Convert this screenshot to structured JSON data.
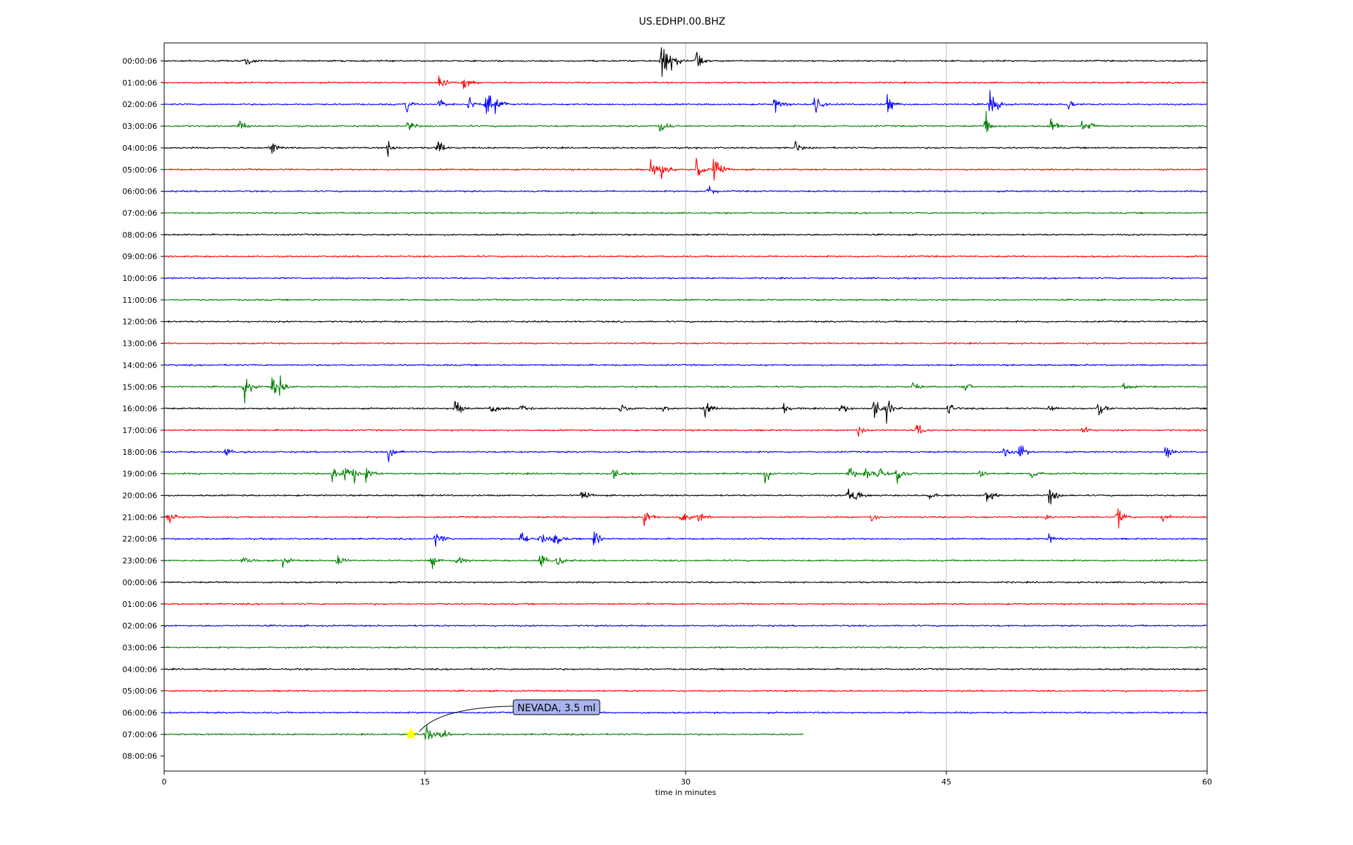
{
  "chart_data": {
    "type": "line",
    "title": "US.EDHPI.00.BHZ",
    "xlabel": "time in minutes",
    "xlim": [
      0,
      60
    ],
    "x_ticks": [
      0,
      15,
      30,
      45,
      60
    ],
    "x_tick_labels": [
      "0",
      "15",
      "30",
      "45",
      "60"
    ],
    "grid": "vertical lines at x ticks",
    "row_colors": [
      "#000000",
      "#ff0000",
      "#0000ff",
      "#008000"
    ],
    "rows": [
      {
        "label": "00:00:06",
        "end": 60,
        "events": [
          [
            4.6,
            0.7
          ],
          [
            28.6,
            2.8
          ],
          [
            29.2,
            1.2
          ],
          [
            30.6,
            0.7
          ]
        ]
      },
      {
        "label": "01:00:06",
        "end": 60,
        "events": [
          [
            15.8,
            0.9
          ],
          [
            17.2,
            0.8
          ]
        ]
      },
      {
        "label": "02:00:06",
        "end": 60,
        "events": [
          [
            13.9,
            0.9
          ],
          [
            15.8,
            0.8
          ],
          [
            17.5,
            0.7
          ],
          [
            18.5,
            1.4
          ],
          [
            19.0,
            0.8
          ],
          [
            35.1,
            1.0
          ],
          [
            37.4,
            1.1
          ],
          [
            41.6,
            0.9
          ],
          [
            47.5,
            1.6
          ],
          [
            52.0,
            0.6
          ]
        ]
      },
      {
        "label": "03:00:06",
        "end": 60,
        "events": [
          [
            4.3,
            0.9
          ],
          [
            14.0,
            0.6
          ],
          [
            28.5,
            0.8
          ],
          [
            47.2,
            1.3
          ],
          [
            51.0,
            0.8
          ],
          [
            52.8,
            0.8
          ],
          [
            53.2,
            0.7
          ]
        ]
      },
      {
        "label": "04:00:06",
        "end": 60,
        "events": [
          [
            6.1,
            0.8
          ],
          [
            12.8,
            0.8
          ],
          [
            15.7,
            0.9
          ],
          [
            36.3,
            0.5
          ]
        ]
      },
      {
        "label": "05:00:06",
        "end": 60,
        "events": [
          [
            28.0,
            0.9
          ],
          [
            28.6,
            1.0
          ],
          [
            30.6,
            1.3
          ],
          [
            31.6,
            1.4
          ]
        ]
      },
      {
        "label": "06:00:06",
        "end": 60,
        "events": [
          [
            31.2,
            0.7
          ]
        ]
      },
      {
        "label": "07:00:06",
        "end": 60,
        "events": []
      },
      {
        "label": "08:00:06",
        "end": 60,
        "events": []
      },
      {
        "label": "09:00:06",
        "end": 60,
        "events": []
      },
      {
        "label": "10:00:06",
        "end": 60,
        "events": []
      },
      {
        "label": "11:00:06",
        "end": 60,
        "events": []
      },
      {
        "label": "12:00:06",
        "end": 60,
        "events": []
      },
      {
        "label": "13:00:06",
        "end": 60,
        "events": []
      },
      {
        "label": "14:00:06",
        "end": 60,
        "events": []
      },
      {
        "label": "15:00:06",
        "end": 60,
        "events": [
          [
            4.6,
            1.3
          ],
          [
            6.2,
            1.0
          ],
          [
            6.6,
            1.0
          ],
          [
            43.0,
            0.6
          ],
          [
            46.0,
            0.6
          ],
          [
            55.2,
            0.5
          ]
        ]
      },
      {
        "label": "16:00:06",
        "end": 60,
        "events": [
          [
            16.7,
            1.4
          ],
          [
            18.8,
            0.7
          ],
          [
            20.5,
            0.7
          ],
          [
            26.2,
            0.6
          ],
          [
            28.7,
            0.6
          ],
          [
            31.1,
            0.9
          ],
          [
            35.6,
            0.7
          ],
          [
            38.9,
            0.6
          ],
          [
            40.8,
            1.2
          ],
          [
            41.5,
            1.0
          ],
          [
            45.1,
            0.6
          ],
          [
            50.9,
            0.6
          ],
          [
            53.7,
            1.1
          ]
        ]
      },
      {
        "label": "17:00:06",
        "end": 60,
        "events": [
          [
            39.9,
            0.6
          ],
          [
            43.3,
            0.8
          ],
          [
            52.8,
            0.5
          ]
        ]
      },
      {
        "label": "18:00:06",
        "end": 60,
        "events": [
          [
            3.5,
            0.6
          ],
          [
            12.9,
            0.8
          ],
          [
            48.3,
            0.8
          ],
          [
            49.2,
            0.8
          ],
          [
            57.6,
            1.0
          ]
        ]
      },
      {
        "label": "19:00:06",
        "end": 60,
        "events": [
          [
            9.6,
            0.8
          ],
          [
            10.3,
            0.9
          ],
          [
            10.9,
            0.8
          ],
          [
            11.6,
            0.8
          ],
          [
            25.8,
            0.7
          ],
          [
            34.5,
            1.0
          ],
          [
            39.3,
            0.9
          ],
          [
            40.3,
            1.0
          ],
          [
            41.0,
            1.0
          ],
          [
            42.1,
            0.9
          ],
          [
            46.9,
            0.6
          ],
          [
            49.9,
            0.6
          ]
        ]
      },
      {
        "label": "20:00:06",
        "end": 60,
        "events": [
          [
            24.0,
            0.6
          ],
          [
            39.3,
            0.9
          ],
          [
            39.6,
            0.9
          ],
          [
            44.0,
            0.5
          ],
          [
            47.3,
            0.8
          ],
          [
            50.9,
            0.9
          ]
        ]
      },
      {
        "label": "21:00:06",
        "end": 60,
        "events": [
          [
            0.2,
            0.9
          ],
          [
            27.6,
            0.8
          ],
          [
            29.7,
            0.9
          ],
          [
            30.7,
            0.6
          ],
          [
            40.7,
            0.6
          ],
          [
            50.6,
            0.6
          ],
          [
            54.8,
            1.2
          ],
          [
            57.4,
            0.6
          ]
        ]
      },
      {
        "label": "22:00:06",
        "end": 60,
        "events": [
          [
            15.6,
            0.9
          ],
          [
            20.5,
            0.9
          ],
          [
            21.6,
            1.0
          ],
          [
            22.4,
            0.9
          ],
          [
            24.7,
            1.0
          ],
          [
            50.9,
            0.5
          ]
        ]
      },
      {
        "label": "23:00:06",
        "end": 60,
        "events": [
          [
            4.5,
            0.7
          ],
          [
            6.8,
            0.6
          ],
          [
            9.9,
            0.9
          ],
          [
            15.3,
            0.9
          ],
          [
            16.8,
            0.6
          ],
          [
            21.6,
            1.0
          ],
          [
            22.6,
            0.8
          ]
        ]
      },
      {
        "label": "00:00:06",
        "end": 60,
        "events": []
      },
      {
        "label": "01:00:06",
        "end": 60,
        "events": []
      },
      {
        "label": "02:00:06",
        "end": 60,
        "events": []
      },
      {
        "label": "03:00:06",
        "end": 60,
        "events": []
      },
      {
        "label": "04:00:06",
        "end": 60,
        "events": []
      },
      {
        "label": "05:00:06",
        "end": 60,
        "events": []
      },
      {
        "label": "06:00:06",
        "end": 60,
        "events": []
      },
      {
        "label": "07:00:06",
        "end": 36.8,
        "events": [
          [
            15.0,
            1.3
          ],
          [
            15.9,
            0.7
          ]
        ]
      },
      {
        "label": "08:00:06",
        "end": 0,
        "events": []
      }
    ],
    "annotations": [
      {
        "text": "NEVADA, 3.5 ml",
        "row": 31,
        "x": 14.2,
        "marker": "star",
        "marker_color": "#ffff00"
      }
    ]
  }
}
